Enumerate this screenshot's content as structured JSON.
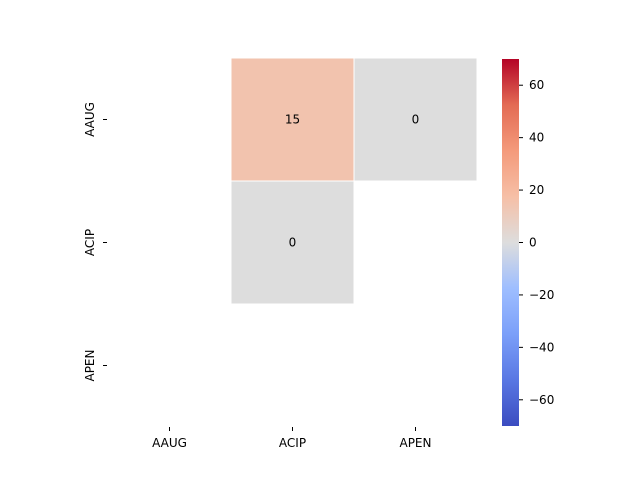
{
  "chart_data": {
    "type": "heatmap",
    "title": "",
    "xlabel": "",
    "ylabel": "",
    "x_categories": [
      "AAUG",
      "ACIP",
      "APEN"
    ],
    "y_categories": [
      "AAUG",
      "ACIP",
      "APEN"
    ],
    "cells": [
      {
        "row": 0,
        "col": 1,
        "value": 15,
        "label": "15"
      },
      {
        "row": 0,
        "col": 2,
        "value": 0,
        "label": "0"
      },
      {
        "row": 1,
        "col": 1,
        "value": 0,
        "label": "0"
      }
    ],
    "masked": "empty cells not drawn",
    "colormap": "coolwarm",
    "vmin": -70,
    "vmax": 70,
    "colorbar": {
      "ticks": [
        60,
        40,
        20,
        0,
        -20,
        -40,
        -60
      ],
      "tick_labels": [
        "60",
        "40",
        "20",
        "0",
        "−20",
        "−40",
        "−60"
      ],
      "placement": "right"
    },
    "colors": {
      "low": "#3b4cc0",
      "mid": "#dddddd",
      "high": "#b40426",
      "cell_border": "#ffffff"
    }
  }
}
